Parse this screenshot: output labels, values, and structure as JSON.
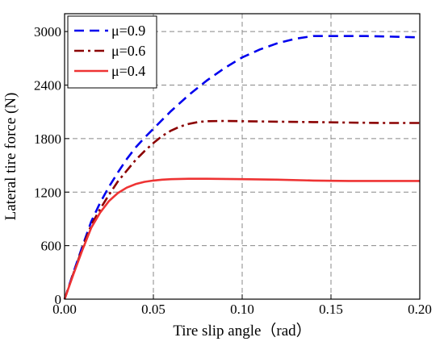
{
  "chart_data": {
    "type": "line",
    "xlabel": "Tire slip angle（rad）",
    "ylabel": "Lateral tire force (N)",
    "xlim": [
      0,
      0.2
    ],
    "ylim": [
      0,
      3200
    ],
    "x_ticks": [
      0,
      0.05,
      0.1,
      0.15,
      0.2
    ],
    "x_tick_labels": [
      "0.00",
      "0.05",
      "0.10",
      "0.15",
      "0.20"
    ],
    "y_ticks": [
      0,
      600,
      1200,
      1800,
      2400,
      3000
    ],
    "y_tick_labels": [
      "0",
      "600",
      "1200",
      "1800",
      "2400",
      "3000"
    ],
    "grid": true,
    "grid_style": "dashed",
    "legend_position": "top-left",
    "series": [
      {
        "name": "μ=0.9",
        "color": "#0000ee",
        "line_style": "dashed",
        "x": [
          0,
          0.005,
          0.01,
          0.015,
          0.02,
          0.025,
          0.03,
          0.035,
          0.04,
          0.045,
          0.05,
          0.055,
          0.06,
          0.07,
          0.08,
          0.09,
          0.1,
          0.11,
          0.12,
          0.13,
          0.14,
          0.15,
          0.16,
          0.17,
          0.18,
          0.19,
          0.2
        ],
        "y": [
          0,
          300,
          590,
          870,
          1080,
          1260,
          1420,
          1570,
          1700,
          1810,
          1910,
          2010,
          2110,
          2290,
          2450,
          2590,
          2710,
          2800,
          2870,
          2920,
          2950,
          2950,
          2950,
          2950,
          2945,
          2940,
          2935
        ]
      },
      {
        "name": "μ=0.6",
        "color": "#8b0000",
        "line_style": "dashdot",
        "x": [
          0,
          0.005,
          0.01,
          0.015,
          0.02,
          0.025,
          0.03,
          0.035,
          0.04,
          0.045,
          0.05,
          0.055,
          0.06,
          0.065,
          0.07,
          0.075,
          0.08,
          0.09,
          0.1,
          0.12,
          0.14,
          0.16,
          0.18,
          0.2
        ],
        "y": [
          0,
          290,
          570,
          830,
          1010,
          1170,
          1320,
          1440,
          1560,
          1660,
          1750,
          1830,
          1890,
          1935,
          1965,
          1985,
          1995,
          1998,
          1995,
          1990,
          1985,
          1980,
          1975,
          1975
        ]
      },
      {
        "name": "μ=0.4",
        "color": "#ee3333",
        "line_style": "solid",
        "x": [
          0,
          0.005,
          0.01,
          0.015,
          0.02,
          0.025,
          0.03,
          0.035,
          0.04,
          0.045,
          0.05,
          0.055,
          0.06,
          0.07,
          0.08,
          0.1,
          0.12,
          0.14,
          0.16,
          0.18,
          0.2
        ],
        "y": [
          0,
          280,
          550,
          800,
          970,
          1100,
          1190,
          1250,
          1290,
          1315,
          1330,
          1340,
          1345,
          1350,
          1350,
          1345,
          1340,
          1330,
          1325,
          1325,
          1325
        ]
      }
    ]
  }
}
